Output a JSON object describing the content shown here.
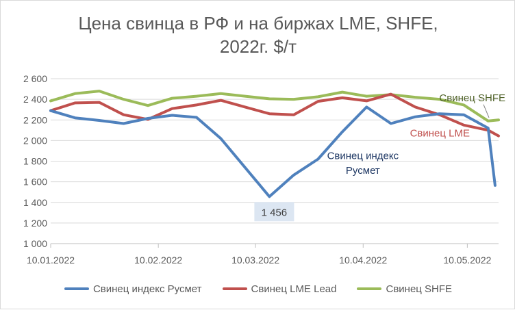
{
  "chart_data": {
    "type": "line",
    "title_line1": "Цена свинца в РФ и на биржах LME, SHFE,",
    "title_line2": "2022г. $/т",
    "ylim": [
      1000,
      2600
    ],
    "y_ticks": [
      "1 000",
      "1 200",
      "1 400",
      "1 600",
      "1 800",
      "2 000",
      "2 200",
      "2 400",
      "2 600"
    ],
    "y_tick_values": [
      1000,
      1200,
      1400,
      1600,
      1800,
      2000,
      2200,
      2400,
      2600
    ],
    "x_tick_labels": [
      "10.01.2022",
      "10.02.2022",
      "10.03.2022",
      "10.04.2022",
      "10.05.2022"
    ],
    "x_tick_dates": [
      "2022-01-10",
      "2022-02-10",
      "2022-03-10",
      "2022-04-10",
      "2022-05-10"
    ],
    "grid": "horizontal",
    "legend_position": "bottom",
    "series": [
      {
        "name": "Свинец индекс Русмет",
        "color": "#4f81bd",
        "x": [
          "2022-01-10",
          "2022-01-17",
          "2022-01-24",
          "2022-01-31",
          "2022-02-07",
          "2022-02-14",
          "2022-02-21",
          "2022-02-28",
          "2022-03-14",
          "2022-03-21",
          "2022-03-28",
          "2022-04-04",
          "2022-04-11",
          "2022-04-18",
          "2022-04-25",
          "2022-05-02",
          "2022-05-09",
          "2022-05-16",
          "2022-05-18"
        ],
        "y": [
          2290,
          2220,
          2195,
          2165,
          2215,
          2245,
          2225,
          2020,
          1456,
          1665,
          1820,
          2085,
          2325,
          2165,
          2230,
          2260,
          2250,
          2120,
          1565
        ]
      },
      {
        "name": "Свинец LME Lead",
        "color": "#c0504d",
        "x": [
          "2022-01-10",
          "2022-01-17",
          "2022-01-24",
          "2022-01-31",
          "2022-02-07",
          "2022-02-14",
          "2022-02-21",
          "2022-02-28",
          "2022-03-07",
          "2022-03-14",
          "2022-03-21",
          "2022-03-28",
          "2022-04-04",
          "2022-04-11",
          "2022-04-18",
          "2022-04-25",
          "2022-05-02",
          "2022-05-09",
          "2022-05-16",
          "2022-05-19"
        ],
        "y": [
          2290,
          2365,
          2370,
          2250,
          2205,
          2310,
          2345,
          2390,
          2325,
          2260,
          2250,
          2380,
          2415,
          2385,
          2450,
          2325,
          2250,
          2150,
          2100,
          2045
        ]
      },
      {
        "name": "Свинец SHFE",
        "color": "#9bbb59",
        "x": [
          "2022-01-10",
          "2022-01-17",
          "2022-01-24",
          "2022-01-31",
          "2022-02-07",
          "2022-02-14",
          "2022-02-21",
          "2022-02-28",
          "2022-03-07",
          "2022-03-14",
          "2022-03-21",
          "2022-03-28",
          "2022-04-04",
          "2022-04-11",
          "2022-04-18",
          "2022-04-25",
          "2022-05-02",
          "2022-05-09",
          "2022-05-16",
          "2022-05-19"
        ],
        "y": [
          2385,
          2455,
          2480,
          2400,
          2340,
          2410,
          2430,
          2455,
          2430,
          2405,
          2400,
          2425,
          2470,
          2430,
          2445,
          2420,
          2400,
          2345,
          2190,
          2200
        ]
      }
    ],
    "annotations": {
      "min_label": "1 456",
      "shfe_label": "Свинец SHFE",
      "lme_label": "Свинец LME",
      "rusmet_label_line1": "Свинец индекс",
      "rusmet_label_line2": "Русмет"
    },
    "annotation_colors": {
      "shfe": "#4f6228",
      "lme": "#c0504d",
      "rusmet": "#1f3864",
      "min_bg": "#dce6f2"
    }
  }
}
